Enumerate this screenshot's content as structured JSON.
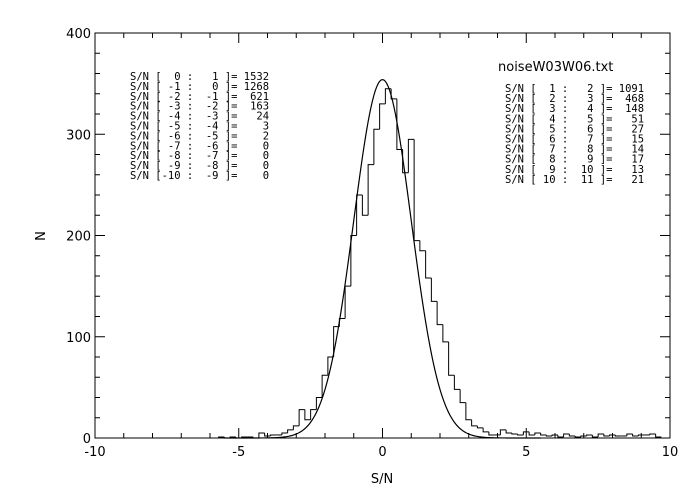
{
  "chart_data": {
    "type": "line",
    "title": "noiseW03W06.txt",
    "xlabel": "S/N",
    "ylabel": "N",
    "xlim": [
      -10,
      10
    ],
    "ylim": [
      0,
      400
    ],
    "x_ticks": [
      -10,
      -5,
      0,
      5,
      10
    ],
    "y_ticks": [
      0,
      100,
      200,
      300,
      400
    ],
    "grid": false,
    "histogram": {
      "name": "",
      "bin_width": 0.2,
      "bins": [
        {
          "x": -5.6,
          "y": 1
        },
        {
          "x": -5.4,
          "y": 0
        },
        {
          "x": -5.2,
          "y": 1
        },
        {
          "x": -5.0,
          "y": 0
        },
        {
          "x": -4.8,
          "y": 1
        },
        {
          "x": -4.6,
          "y": 1
        },
        {
          "x": -4.4,
          "y": 0
        },
        {
          "x": -4.2,
          "y": 5
        },
        {
          "x": -4.0,
          "y": 2
        },
        {
          "x": -3.8,
          "y": 3
        },
        {
          "x": -3.6,
          "y": 3
        },
        {
          "x": -3.4,
          "y": 5
        },
        {
          "x": -3.2,
          "y": 8
        },
        {
          "x": -3.0,
          "y": 12
        },
        {
          "x": -2.8,
          "y": 28
        },
        {
          "x": -2.6,
          "y": 18
        },
        {
          "x": -2.4,
          "y": 28
        },
        {
          "x": -2.2,
          "y": 40
        },
        {
          "x": -2.0,
          "y": 62
        },
        {
          "x": -1.8,
          "y": 80
        },
        {
          "x": -1.6,
          "y": 110
        },
        {
          "x": -1.4,
          "y": 118
        },
        {
          "x": -1.2,
          "y": 150
        },
        {
          "x": -1.0,
          "y": 200
        },
        {
          "x": -0.8,
          "y": 240
        },
        {
          "x": -0.6,
          "y": 220
        },
        {
          "x": -0.4,
          "y": 270
        },
        {
          "x": -0.2,
          "y": 305
        },
        {
          "x": 0.0,
          "y": 330
        },
        {
          "x": 0.2,
          "y": 345
        },
        {
          "x": 0.4,
          "y": 335
        },
        {
          "x": 0.6,
          "y": 285
        },
        {
          "x": 0.8,
          "y": 262
        },
        {
          "x": 1.0,
          "y": 295
        },
        {
          "x": 1.2,
          "y": 195
        },
        {
          "x": 1.4,
          "y": 185
        },
        {
          "x": 1.6,
          "y": 158
        },
        {
          "x": 1.8,
          "y": 135
        },
        {
          "x": 2.0,
          "y": 112
        },
        {
          "x": 2.2,
          "y": 95
        },
        {
          "x": 2.4,
          "y": 62
        },
        {
          "x": 2.6,
          "y": 48
        },
        {
          "x": 2.8,
          "y": 35
        },
        {
          "x": 3.0,
          "y": 18
        },
        {
          "x": 3.2,
          "y": 12
        },
        {
          "x": 3.4,
          "y": 10
        },
        {
          "x": 3.6,
          "y": 6
        },
        {
          "x": 3.8,
          "y": 3
        },
        {
          "x": 4.0,
          "y": 3
        },
        {
          "x": 4.2,
          "y": 8
        },
        {
          "x": 4.4,
          "y": 5
        },
        {
          "x": 4.6,
          "y": 4
        },
        {
          "x": 4.8,
          "y": 3
        },
        {
          "x": 5.0,
          "y": 6
        },
        {
          "x": 5.2,
          "y": 3
        },
        {
          "x": 5.4,
          "y": 5
        },
        {
          "x": 5.6,
          "y": 3
        },
        {
          "x": 5.8,
          "y": 2
        },
        {
          "x": 6.0,
          "y": 3
        },
        {
          "x": 6.2,
          "y": 1
        },
        {
          "x": 6.4,
          "y": 4
        },
        {
          "x": 6.6,
          "y": 2
        },
        {
          "x": 6.8,
          "y": 1
        },
        {
          "x": 7.0,
          "y": 2
        },
        {
          "x": 7.2,
          "y": 3
        },
        {
          "x": 7.4,
          "y": 1
        },
        {
          "x": 7.6,
          "y": 4
        },
        {
          "x": 7.8,
          "y": 2
        },
        {
          "x": 8.0,
          "y": 3
        },
        {
          "x": 8.2,
          "y": 2
        },
        {
          "x": 8.4,
          "y": 2
        },
        {
          "x": 8.6,
          "y": 4
        },
        {
          "x": 8.8,
          "y": 2
        },
        {
          "x": 9.0,
          "y": 3
        },
        {
          "x": 9.2,
          "y": 3
        },
        {
          "x": 9.4,
          "y": 4
        },
        {
          "x": 9.6,
          "y": 1
        }
      ]
    },
    "gaussian": {
      "name": "",
      "amplitude": 354,
      "mean": 0,
      "sigma": 1.0
    },
    "annotations_left": [
      "S/N [  0 :   1 ]= 1532",
      "S/N [ -1 :   0 ]= 1268",
      "S/N [ -2 :  -1 ]=  621",
      "S/N [ -3 :  -2 ]=  163",
      "S/N [ -4 :  -3 ]=   24",
      "S/N [ -5 :  -4 ]=    3",
      "S/N [ -6 :  -5 ]=    2",
      "S/N [ -7 :  -6 ]=    0",
      "S/N [ -8 :  -7 ]=    0",
      "S/N [ -9 :  -8 ]=    0",
      "S/N [-10 :  -9 ]=    0"
    ],
    "annotations_right": [
      "S/N [  1 :   2 ]= 1091",
      "S/N [  2 :   3 ]=  468",
      "S/N [  3 :   4 ]=  148",
      "S/N [  4 :   5 ]=   51",
      "S/N [  5 :   6 ]=   27",
      "S/N [  6 :   7 ]=   15",
      "S/N [  7 :   8 ]=   14",
      "S/N [  8 :   9 ]=   17",
      "S/N [  9 :  10 ]=   13",
      "S/N [ 10 :  11 ]=   21"
    ]
  }
}
